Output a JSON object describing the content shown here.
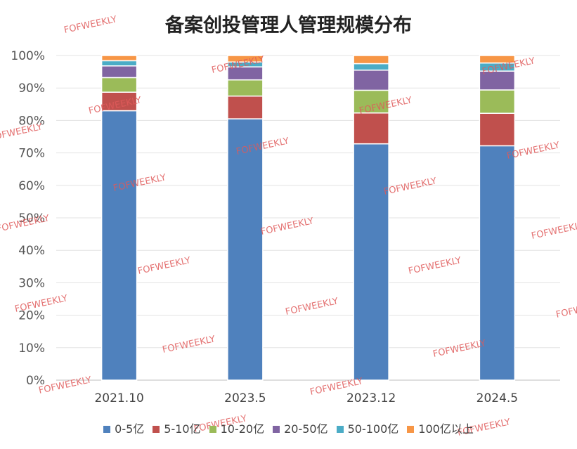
{
  "chart_data": {
    "type": "bar",
    "stacked": true,
    "title": "备案创投管理人管理规模分布",
    "categories": [
      "2021.10",
      "2023.5",
      "2023.12",
      "2024.5"
    ],
    "y_ticks": [
      "0%",
      "10%",
      "20%",
      "30%",
      "40%",
      "50%",
      "60%",
      "70%",
      "80%",
      "90%",
      "100%"
    ],
    "ylim": [
      0,
      100
    ],
    "grid": true,
    "legend_position": "bottom",
    "series": [
      {
        "name": "0-5亿",
        "color": "#4f81bd",
        "values": [
          83.0,
          80.5,
          72.8,
          72.2
        ]
      },
      {
        "name": "5-10亿",
        "color": "#c0504d",
        "values": [
          5.7,
          7.0,
          9.5,
          10.0
        ]
      },
      {
        "name": "10-20亿",
        "color": "#9bbb59",
        "values": [
          4.5,
          5.0,
          7.0,
          7.2
        ]
      },
      {
        "name": "20-50亿",
        "color": "#8064a2",
        "values": [
          3.6,
          4.0,
          6.2,
          5.8
        ]
      },
      {
        "name": "50-100亿",
        "color": "#4bacc6",
        "values": [
          1.6,
          1.5,
          2.0,
          2.5
        ]
      },
      {
        "name": "100亿以上",
        "color": "#f79646",
        "values": [
          1.6,
          2.0,
          2.5,
          2.3
        ]
      }
    ]
  },
  "watermark": "FOFWEEKLY"
}
